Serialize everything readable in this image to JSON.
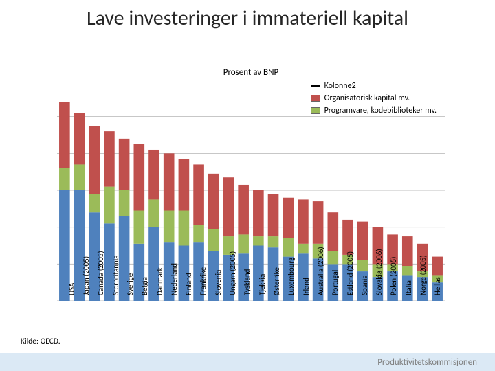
{
  "title": "Lave investeringer i immateriell kapital",
  "chart": {
    "type": "stacked-bar",
    "title": "Prosent av BNP",
    "ylim": [
      0,
      12
    ],
    "ytick_step": 2,
    "background_color": "#ffffff",
    "grid_color": "#bfbfbf",
    "axis_fontsize": 11,
    "bar_width_ratio": 0.72,
    "legend": {
      "position": "top-right",
      "fontsize": 12,
      "items": [
        {
          "label": "Kolonne2",
          "type": "line",
          "color": "#000000"
        },
        {
          "label": "Organisatorisk kapital mv.",
          "type": "box",
          "color": "#c0504d"
        },
        {
          "label": "Programvare, kodebiblioteker mv.",
          "type": "box",
          "color": "#9bbb59"
        }
      ]
    },
    "series_order": [
      "software",
      "economic",
      "organizational"
    ],
    "series_colors": {
      "software": "#4f81bd",
      "economic": "#9bbb59",
      "organizational": "#c0504d"
    },
    "categories": [
      "USA",
      "Japan (2005)",
      "Canada (2005)",
      "Storbritannia",
      "Sverige",
      "Belgia",
      "Danmark",
      "Nederland",
      "Finland",
      "Frankrike",
      "Slovenia",
      "Ungarn (2005)",
      "Tyskland",
      "Tjekkia",
      "Østerrike",
      "Luxembourg",
      "Irland",
      "Australia (2006)",
      "Portugal",
      "Estland (2005)",
      "Spania",
      "Slovakia (2006)",
      "Polen (2005)",
      "Italia",
      "Norge (2005)",
      "Hellas"
    ],
    "data": {
      "software": [
        6.0,
        6.0,
        4.8,
        4.2,
        4.6,
        3.1,
        4.0,
        3.2,
        3.0,
        3.2,
        2.7,
        2.5,
        2.6,
        3.0,
        2.9,
        2.4,
        2.6,
        2.3,
        2.0,
        2.0,
        1.6,
        1.3,
        1.6,
        1.4,
        1.3,
        1.0
      ],
      "economic": [
        1.2,
        1.4,
        1.0,
        2.0,
        1.4,
        1.8,
        1.5,
        1.7,
        1.9,
        0.9,
        1.2,
        1.0,
        1.0,
        0.5,
        0.6,
        1.0,
        0.5,
        0.8,
        0.7,
        0.5,
        0.6,
        0.7,
        0.4,
        0.5,
        0.3,
        0.4
      ],
      "organizational": [
        3.6,
        2.8,
        3.7,
        3.0,
        2.8,
        3.6,
        2.7,
        3.1,
        2.8,
        3.3,
        3.0,
        3.2,
        2.7,
        2.5,
        2.3,
        2.2,
        2.4,
        2.3,
        2.1,
        1.9,
        2.1,
        2.0,
        1.6,
        1.6,
        1.5,
        1.0
      ]
    }
  },
  "source": "Kilde: OECD.",
  "footer": "Produktivitetskommisjonen",
  "footer_bg": "#dbe9f5",
  "footer_color": "#7f7f7f"
}
